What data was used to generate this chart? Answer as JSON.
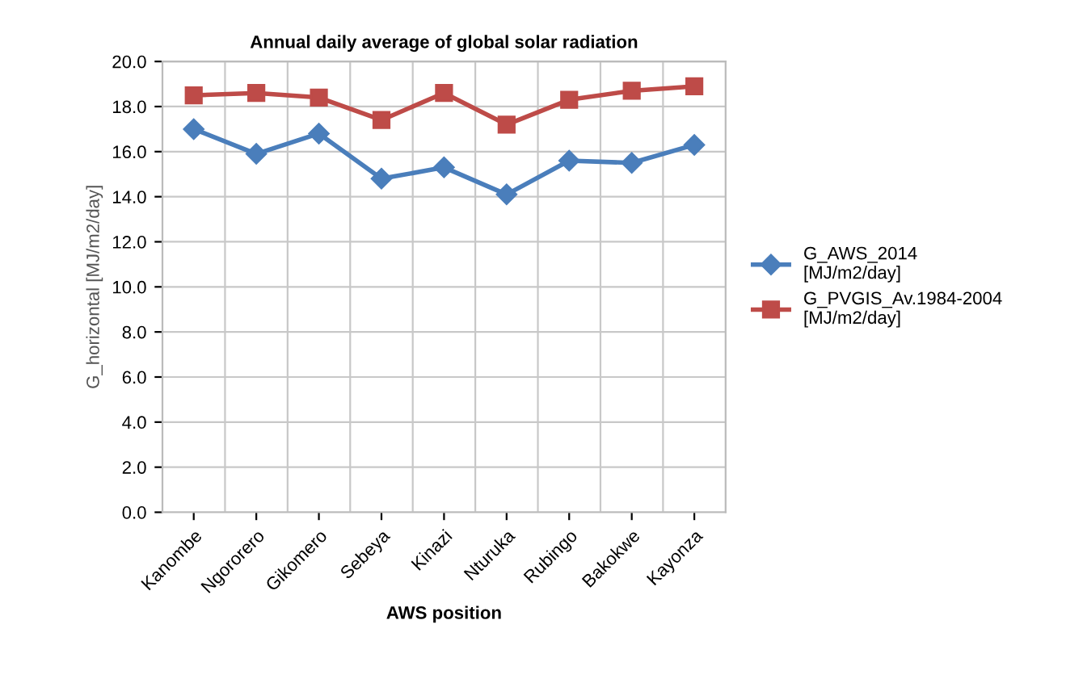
{
  "chart_data": {
    "type": "line",
    "title": "Annual daily average of global solar radiation",
    "xlabel": "AWS position",
    "ylabel": "G_horizontal [MJ/m2/day]",
    "categories": [
      "Kanombe",
      "Ngororero",
      "Gikomero",
      "Sebeya",
      "Kinazi",
      "Nturuka",
      "Rubingo",
      "Bakokwe",
      "Kayonza"
    ],
    "series": [
      {
        "name": "G_AWS_2014\n[MJ/m2/day]",
        "color": "#4a7ebb",
        "marker": "diamond",
        "values": [
          17.0,
          15.9,
          16.8,
          14.8,
          15.3,
          14.1,
          15.6,
          15.5,
          16.3
        ]
      },
      {
        "name": "G_PVGIS_Av.1984-2004\n[MJ/m2/day]",
        "color": "#be4b48",
        "marker": "square",
        "values": [
          18.5,
          18.6,
          18.4,
          17.4,
          18.6,
          17.2,
          18.3,
          18.7,
          18.9
        ]
      }
    ],
    "ylim": [
      0,
      20
    ],
    "yticks": [
      {
        "value": 0,
        "label": "0.0"
      },
      {
        "value": 2,
        "label": "2.0"
      },
      {
        "value": 4,
        "label": "4.0"
      },
      {
        "value": 6,
        "label": "6.0"
      },
      {
        "value": 8,
        "label": "8.0"
      },
      {
        "value": 10,
        "label": "10.0"
      },
      {
        "value": 12,
        "label": "12.0"
      },
      {
        "value": 14,
        "label": "14.0"
      },
      {
        "value": 16,
        "label": "16.0"
      },
      {
        "value": 18,
        "label": "18.0"
      },
      {
        "value": 20,
        "label": "20.0"
      }
    ],
    "grid": true,
    "legend": "right",
    "line_style": "solid"
  }
}
